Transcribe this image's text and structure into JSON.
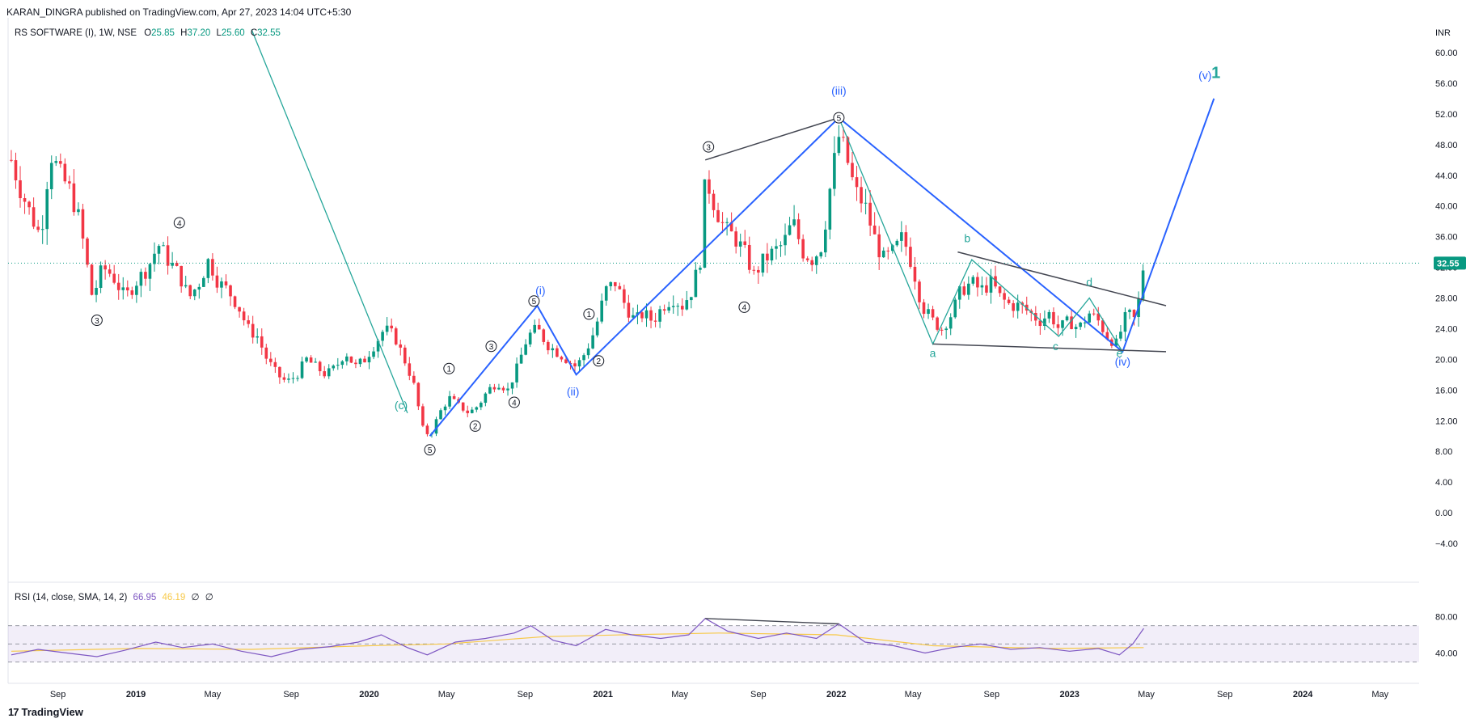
{
  "header": {
    "publisher": "KARAN_DINGRA published on TradingView.com, Apr 27, 2023 14:04 UTC+5:30",
    "symbol": "RS SOFTWARE (I), 1W, NSE",
    "o_label": "O",
    "o_value": "25.85",
    "h_label": "H",
    "h_value": "37.20",
    "l_label": "L",
    "l_value": "25.60",
    "c_label": "C",
    "c_value": "32.55"
  },
  "rsi_header": {
    "label": "RSI (14, close, SMA, 14, 2)",
    "value1": "66.95",
    "value2": "46.19",
    "extra1": "∅",
    "extra2": "∅"
  },
  "brand": {
    "logo": "17",
    "name": "TradingView"
  },
  "colors": {
    "up": "#089981",
    "down": "#f23645",
    "wave_blue": "#2962ff",
    "wave_green": "#26a69a",
    "rsi_line": "#7e57c2",
    "rsi_ma": "#f7c948",
    "trend": "#434651"
  },
  "chart_data": {
    "type": "candlestick",
    "currency": "INR",
    "last_price": 32.55,
    "price_axis": {
      "min": -4,
      "max": 60,
      "ticks": [
        60,
        56,
        52,
        48,
        44,
        40,
        36,
        32,
        28,
        24,
        20,
        16,
        12,
        8,
        4,
        0,
        -4
      ]
    },
    "price_tick_labels": [
      "60.00",
      "56.00",
      "52.00",
      "48.00",
      "44.00",
      "40.00",
      "36.00",
      "32.00",
      "28.00",
      "24.00",
      "20.00",
      "16.00",
      "12.00",
      "8.00",
      "4.00",
      "0.00",
      "−4.00"
    ],
    "rsi_axis": {
      "min": 20,
      "max": 100,
      "ticks": [
        80,
        40
      ],
      "tick_labels": [
        "80.00",
        "40.00"
      ],
      "bands": [
        70,
        50,
        30
      ]
    },
    "time_axis": {
      "start": "2018-06-15",
      "end": "2024-07-01",
      "ticks": [
        {
          "date": "2018-09-01",
          "label": "Sep",
          "bold": false
        },
        {
          "date": "2019-01-01",
          "label": "2019",
          "bold": true
        },
        {
          "date": "2019-05-01",
          "label": "May",
          "bold": false
        },
        {
          "date": "2019-09-01",
          "label": "Sep",
          "bold": false
        },
        {
          "date": "2020-01-01",
          "label": "2020",
          "bold": true
        },
        {
          "date": "2020-05-01",
          "label": "May",
          "bold": false
        },
        {
          "date": "2020-09-01",
          "label": "Sep",
          "bold": false
        },
        {
          "date": "2021-01-01",
          "label": "2021",
          "bold": true
        },
        {
          "date": "2021-05-01",
          "label": "May",
          "bold": false
        },
        {
          "date": "2021-09-01",
          "label": "Sep",
          "bold": false
        },
        {
          "date": "2022-01-01",
          "label": "2022",
          "bold": true
        },
        {
          "date": "2022-05-01",
          "label": "May",
          "bold": false
        },
        {
          "date": "2022-09-01",
          "label": "Sep",
          "bold": false
        },
        {
          "date": "2023-01-01",
          "label": "2023",
          "bold": true
        },
        {
          "date": "2023-05-01",
          "label": "May",
          "bold": false
        },
        {
          "date": "2023-09-01",
          "label": "Sep",
          "bold": false
        },
        {
          "date": "2024-01-01",
          "label": "2024",
          "bold": true
        },
        {
          "date": "2024-05-01",
          "label": "May",
          "bold": false
        }
      ]
    },
    "price_path": [
      [
        "2018-06-20",
        46
      ],
      [
        "2018-07-05",
        42
      ],
      [
        "2018-07-25",
        38
      ],
      [
        "2018-08-05",
        36
      ],
      [
        "2018-08-20",
        47
      ],
      [
        "2018-09-05",
        44
      ],
      [
        "2018-09-20",
        42
      ],
      [
        "2018-10-05",
        38
      ],
      [
        "2018-10-25",
        28
      ],
      [
        "2018-11-10",
        32
      ],
      [
        "2018-11-25",
        31
      ],
      [
        "2018-12-15",
        28
      ],
      [
        "2018-12-31",
        30
      ],
      [
        "2019-01-20",
        32
      ],
      [
        "2019-02-05",
        35
      ],
      [
        "2019-02-20",
        33
      ],
      [
        "2019-03-10",
        31
      ],
      [
        "2019-03-25",
        28
      ],
      [
        "2019-04-10",
        30
      ],
      [
        "2019-04-25",
        33
      ],
      [
        "2019-05-10",
        30
      ],
      [
        "2019-05-25",
        29
      ],
      [
        "2019-06-10",
        27
      ],
      [
        "2019-06-25",
        24
      ],
      [
        "2019-07-10",
        23
      ],
      [
        "2019-07-25",
        20
      ],
      [
        "2019-08-10",
        18
      ],
      [
        "2019-08-25",
        17
      ],
      [
        "2019-09-10",
        18
      ],
      [
        "2019-09-25",
        20
      ],
      [
        "2019-10-10",
        19
      ],
      [
        "2019-10-25",
        18
      ],
      [
        "2019-11-10",
        19
      ],
      [
        "2019-11-25",
        21
      ],
      [
        "2019-12-10",
        19
      ],
      [
        "2019-12-25",
        20
      ],
      [
        "2020-01-10",
        22
      ],
      [
        "2020-01-25",
        24
      ],
      [
        "2020-02-10",
        23
      ],
      [
        "2020-02-25",
        20
      ],
      [
        "2020-03-10",
        17
      ],
      [
        "2020-03-25",
        11
      ],
      [
        "2020-04-05",
        10
      ],
      [
        "2020-04-20",
        13
      ],
      [
        "2020-05-05",
        15
      ],
      [
        "2020-05-20",
        14
      ],
      [
        "2020-06-05",
        13
      ],
      [
        "2020-06-20",
        14
      ],
      [
        "2020-07-05",
        16
      ],
      [
        "2020-07-20",
        17
      ],
      [
        "2020-08-05",
        16
      ],
      [
        "2020-08-20",
        19
      ],
      [
        "2020-09-05",
        23
      ],
      [
        "2020-09-20",
        24
      ],
      [
        "2020-10-05",
        22
      ],
      [
        "2020-10-20",
        21
      ],
      [
        "2020-11-05",
        20
      ],
      [
        "2020-11-20",
        19
      ],
      [
        "2020-12-05",
        21
      ],
      [
        "2020-12-20",
        24
      ],
      [
        "2021-01-05",
        29
      ],
      [
        "2021-01-20",
        30
      ],
      [
        "2021-02-05",
        27
      ],
      [
        "2021-02-20",
        25
      ],
      [
        "2021-03-05",
        26
      ],
      [
        "2021-03-20",
        25
      ],
      [
        "2021-04-05",
        27
      ],
      [
        "2021-04-20",
        28
      ],
      [
        "2021-05-05",
        27
      ],
      [
        "2021-05-20",
        29
      ],
      [
        "2021-06-05",
        34
      ],
      [
        "2021-06-10",
        44
      ],
      [
        "2021-06-25",
        40
      ],
      [
        "2021-07-10",
        37
      ],
      [
        "2021-07-25",
        36
      ],
      [
        "2021-08-10",
        34
      ],
      [
        "2021-08-25",
        31
      ],
      [
        "2021-09-10",
        33
      ],
      [
        "2021-09-25",
        34
      ],
      [
        "2021-10-10",
        35
      ],
      [
        "2021-10-25",
        38
      ],
      [
        "2021-11-10",
        34
      ],
      [
        "2021-11-25",
        33
      ],
      [
        "2021-12-10",
        35
      ],
      [
        "2021-12-25",
        44
      ],
      [
        "2022-01-05",
        49
      ],
      [
        "2022-01-15",
        47
      ],
      [
        "2022-01-30",
        42
      ],
      [
        "2022-02-15",
        40
      ],
      [
        "2022-03-01",
        36
      ],
      [
        "2022-03-15",
        33
      ],
      [
        "2022-04-01",
        34
      ],
      [
        "2022-04-15",
        36
      ],
      [
        "2022-05-01",
        32
      ],
      [
        "2022-05-15",
        27
      ],
      [
        "2022-06-01",
        25
      ],
      [
        "2022-06-15",
        24
      ],
      [
        "2022-07-01",
        26
      ],
      [
        "2022-07-15",
        29
      ],
      [
        "2022-08-01",
        30
      ],
      [
        "2022-08-15",
        29
      ],
      [
        "2022-09-01",
        30
      ],
      [
        "2022-09-15",
        28
      ],
      [
        "2022-10-01",
        27
      ],
      [
        "2022-10-15",
        27
      ],
      [
        "2022-11-01",
        26
      ],
      [
        "2022-11-15",
        25
      ],
      [
        "2022-12-01",
        26
      ],
      [
        "2022-12-15",
        24
      ],
      [
        "2023-01-01",
        25
      ],
      [
        "2023-01-15",
        24
      ],
      [
        "2023-02-01",
        26
      ],
      [
        "2023-02-15",
        25
      ],
      [
        "2023-03-01",
        23
      ],
      [
        "2023-03-15",
        22
      ],
      [
        "2023-04-01",
        26
      ],
      [
        "2023-04-15",
        25
      ],
      [
        "2023-04-27",
        32.55
      ]
    ],
    "rsi_path": [
      [
        "2018-06-20",
        38
      ],
      [
        "2018-08-01",
        44
      ],
      [
        "2018-09-15",
        40
      ],
      [
        "2018-11-01",
        36
      ],
      [
        "2018-12-15",
        43
      ],
      [
        "2019-02-01",
        52
      ],
      [
        "2019-03-15",
        46
      ],
      [
        "2019-05-01",
        50
      ],
      [
        "2019-06-15",
        42
      ],
      [
        "2019-08-01",
        36
      ],
      [
        "2019-09-15",
        44
      ],
      [
        "2019-11-01",
        47
      ],
      [
        "2019-12-15",
        52
      ],
      [
        "2020-01-20",
        60
      ],
      [
        "2020-03-01",
        46
      ],
      [
        "2020-04-01",
        38
      ],
      [
        "2020-05-15",
        52
      ],
      [
        "2020-07-01",
        56
      ],
      [
        "2020-08-15",
        62
      ],
      [
        "2020-09-10",
        70
      ],
      [
        "2020-10-15",
        54
      ],
      [
        "2020-11-20",
        48
      ],
      [
        "2021-01-05",
        66
      ],
      [
        "2021-02-15",
        60
      ],
      [
        "2021-04-01",
        56
      ],
      [
        "2021-05-15",
        60
      ],
      [
        "2021-06-10",
        78
      ],
      [
        "2021-07-15",
        64
      ],
      [
        "2021-09-01",
        56
      ],
      [
        "2021-10-15",
        62
      ],
      [
        "2021-12-01",
        56
      ],
      [
        "2022-01-05",
        72
      ],
      [
        "2022-02-15",
        52
      ],
      [
        "2022-04-01",
        48
      ],
      [
        "2022-05-20",
        40
      ],
      [
        "2022-07-01",
        46
      ],
      [
        "2022-08-15",
        50
      ],
      [
        "2022-10-01",
        44
      ],
      [
        "2022-11-15",
        46
      ],
      [
        "2023-01-01",
        42
      ],
      [
        "2023-02-15",
        45
      ],
      [
        "2023-03-20",
        38
      ],
      [
        "2023-04-10",
        50
      ],
      [
        "2023-04-27",
        67
      ]
    ],
    "rsi_ma_path": [
      [
        "2018-06-20",
        42
      ],
      [
        "2019-01-01",
        45
      ],
      [
        "2019-07-01",
        44
      ],
      [
        "2020-01-01",
        48
      ],
      [
        "2020-05-01",
        50
      ],
      [
        "2020-10-01",
        58
      ],
      [
        "2021-02-01",
        60
      ],
      [
        "2021-07-01",
        62
      ],
      [
        "2022-01-01",
        60
      ],
      [
        "2022-06-01",
        48
      ],
      [
        "2022-12-01",
        45
      ],
      [
        "2023-04-27",
        46
      ]
    ],
    "wave_lines": [
      {
        "name": "primary-impulse",
        "color": "blue",
        "points": [
          [
            "2020-04-05",
            10
          ],
          [
            "2020-09-20",
            27
          ],
          [
            "2020-11-20",
            18
          ],
          [
            "2022-01-05",
            51.5
          ],
          [
            "2023-03-25",
            21
          ],
          [
            "2023-08-15",
            54
          ]
        ]
      },
      {
        "name": "minor-triangle",
        "color": "green",
        "points": [
          [
            "2022-01-05",
            51.5
          ],
          [
            "2022-06-01",
            22
          ],
          [
            "2022-08-01",
            33
          ],
          [
            "2022-12-15",
            23
          ],
          [
            "2023-02-01",
            28
          ],
          [
            "2023-03-25",
            21
          ]
        ]
      },
      {
        "name": "prior-decline",
        "color": "green",
        "points": [
          [
            "2019-07-01",
            63
          ],
          [
            "2020-03-01",
            13
          ]
        ]
      }
    ],
    "trend_lines": [
      {
        "points": [
          [
            "2021-06-10",
            46
          ],
          [
            "2022-01-05",
            51.5
          ]
        ]
      },
      {
        "points": [
          [
            "2022-07-10",
            34
          ],
          [
            "2023-06-01",
            27
          ]
        ]
      },
      {
        "points": [
          [
            "2022-06-01",
            22
          ],
          [
            "2023-06-01",
            21
          ]
        ]
      }
    ],
    "rsi_trend_lines": [
      {
        "points": [
          [
            "2021-06-10",
            78
          ],
          [
            "2022-01-05",
            72
          ]
        ]
      }
    ],
    "wave_labels": [
      {
        "text": "(c)",
        "date": "2020-02-20",
        "price": 13.5,
        "color": "green"
      },
      {
        "text": "(i)",
        "date": "2020-09-25",
        "price": 28.5,
        "color": "blue"
      },
      {
        "text": "(ii)",
        "date": "2020-11-15",
        "price": 15.3,
        "color": "blue"
      },
      {
        "text": "(iii)",
        "date": "2022-01-05",
        "price": 54.5,
        "color": "blue"
      },
      {
        "text": "(iv)",
        "date": "2023-03-25",
        "price": 19.2,
        "color": "blue"
      },
      {
        "text": "(v)",
        "date": "2023-08-01",
        "price": 56.5,
        "color": "blue"
      },
      {
        "text": "1",
        "date": "2023-08-18",
        "price": 56.7,
        "color": "green"
      },
      {
        "text": "a",
        "date": "2022-06-01",
        "price": 20.3,
        "color": "green"
      },
      {
        "text": "b",
        "date": "2022-07-25",
        "price": 35.3,
        "color": "green"
      },
      {
        "text": "c",
        "date": "2022-12-10",
        "price": 21.2,
        "color": "green"
      },
      {
        "text": "d",
        "date": "2023-02-01",
        "price": 29.6,
        "color": "green"
      },
      {
        "text": "e",
        "date": "2023-03-20",
        "price": 20.3,
        "color": "green"
      }
    ],
    "circle_labels": [
      {
        "text": "3",
        "date": "2018-11-01",
        "price": 25.1
      },
      {
        "text": "4",
        "date": "2019-03-10",
        "price": 37.8
      },
      {
        "text": "5",
        "date": "2020-04-05",
        "price": 8.2
      },
      {
        "text": "1",
        "date": "2020-05-05",
        "price": 18.8
      },
      {
        "text": "2",
        "date": "2020-06-15",
        "price": 11.3
      },
      {
        "text": "3",
        "date": "2020-07-10",
        "price": 21.7
      },
      {
        "text": "4",
        "date": "2020-08-15",
        "price": 14.4
      },
      {
        "text": "5",
        "date": "2020-09-15",
        "price": 27.6
      },
      {
        "text": "1",
        "date": "2020-12-10",
        "price": 25.9
      },
      {
        "text": "2",
        "date": "2020-12-25",
        "price": 19.8
      },
      {
        "text": "3",
        "date": "2021-06-15",
        "price": 47.7
      },
      {
        "text": "4",
        "date": "2021-08-10",
        "price": 26.8
      },
      {
        "text": "5",
        "date": "2022-01-05",
        "price": 51.5
      }
    ]
  }
}
